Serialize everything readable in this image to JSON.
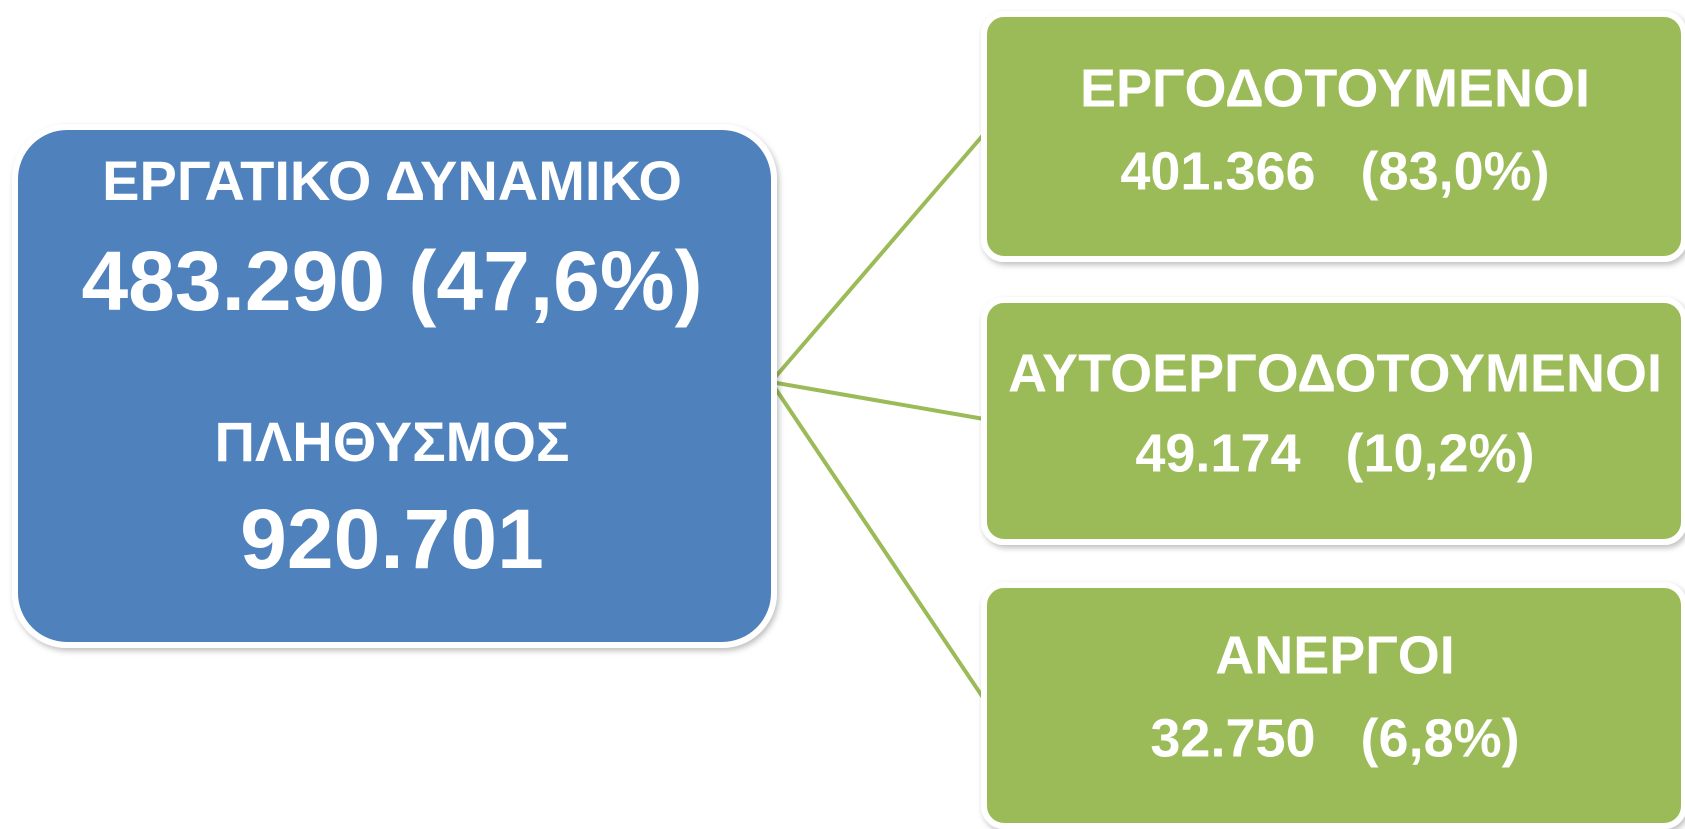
{
  "root": {
    "label": "ΕΡΓΑΤΙΚΟ ΔΥΝΑΜΙΚΟ",
    "value": "483.290 (47,6%)",
    "population_label": "ΠΛΗΘΥΣΜΟΣ",
    "population": "920.701"
  },
  "nodes": [
    {
      "label": "ΕΡΓΟΔΟΤΟΥΜΕΝΟΙ",
      "value": "401.366   (83,0%)"
    },
    {
      "label": "ΑΥΤΟΕΡΓΟΔΟΤΟΥΜΕΝΟΙ",
      "value": "49.174   (10,2%)"
    },
    {
      "label": "ΑΝΕΡΓΟΙ",
      "value": "32.750   (6,8%)"
    }
  ]
}
